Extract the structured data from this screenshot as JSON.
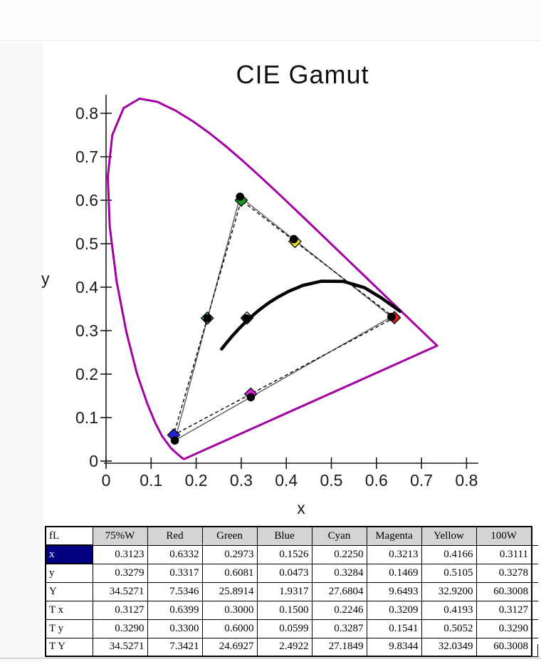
{
  "chart": {
    "title": "CIE Gamut",
    "xlabel": "x",
    "ylabel": "y",
    "x_tick_labels": [
      "0",
      "0.1",
      "0.2",
      "0.3",
      "0.4",
      "0.5",
      "0.6",
      "0.7",
      "0.8"
    ],
    "y_tick_labels": [
      "0",
      "0.1",
      "0.2",
      "0.3",
      "0.4",
      "0.5",
      "0.6",
      "0.7",
      "0.8"
    ]
  },
  "chart_data": {
    "type": "scatter",
    "title": "CIE Gamut",
    "xlabel": "x",
    "ylabel": "y",
    "xlim": [
      0,
      0.84
    ],
    "ylim": [
      0,
      0.85
    ],
    "grid": false,
    "colors": {
      "spectral_locus": "#A300A3",
      "planckian_locus": "#000000",
      "measured_triangle": "#5a5a5a",
      "target_triangle": "#000000",
      "marker_outline": "#000000",
      "measured_dot": "#000000"
    },
    "series": [
      {
        "name": "spectral_locus",
        "style": "solid-closed",
        "points": [
          [
            0.1741,
            0.005
          ],
          [
            0.1733,
            0.0048
          ],
          [
            0.1726,
            0.0048
          ],
          [
            0.1714,
            0.0051
          ],
          [
            0.1689,
            0.0069
          ],
          [
            0.1644,
            0.0109
          ],
          [
            0.1566,
            0.0177
          ],
          [
            0.144,
            0.0297
          ],
          [
            0.1241,
            0.0578
          ],
          [
            0.1096,
            0.0868
          ],
          [
            0.0913,
            0.1327
          ],
          [
            0.0687,
            0.2007
          ],
          [
            0.0454,
            0.295
          ],
          [
            0.0235,
            0.4127
          ],
          [
            0.0082,
            0.5384
          ],
          [
            0.0039,
            0.6548
          ],
          [
            0.0139,
            0.7502
          ],
          [
            0.0389,
            0.812
          ],
          [
            0.0743,
            0.8338
          ],
          [
            0.1142,
            0.8262
          ],
          [
            0.1547,
            0.8059
          ],
          [
            0.1929,
            0.7816
          ],
          [
            0.2296,
            0.7543
          ],
          [
            0.2658,
            0.7243
          ],
          [
            0.3016,
            0.6923
          ],
          [
            0.3373,
            0.6589
          ],
          [
            0.3731,
            0.6245
          ],
          [
            0.4087,
            0.5896
          ],
          [
            0.4441,
            0.5547
          ],
          [
            0.4788,
            0.5202
          ],
          [
            0.5125,
            0.4866
          ],
          [
            0.5448,
            0.4544
          ],
          [
            0.5752,
            0.4242
          ],
          [
            0.6029,
            0.3965
          ],
          [
            0.627,
            0.3725
          ],
          [
            0.6482,
            0.3514
          ],
          [
            0.6658,
            0.334
          ],
          [
            0.6801,
            0.3197
          ],
          [
            0.6915,
            0.3083
          ],
          [
            0.7006,
            0.2993
          ],
          [
            0.7079,
            0.292
          ],
          [
            0.719,
            0.2809
          ],
          [
            0.726,
            0.274
          ],
          [
            0.7347,
            0.2653
          ]
        ]
      },
      {
        "name": "planckian_locus",
        "style": "thick-solid",
        "points": [
          [
            0.2565,
            0.2577
          ],
          [
            0.2607,
            0.2634
          ],
          [
            0.2661,
            0.2704
          ],
          [
            0.2726,
            0.2784
          ],
          [
            0.2806,
            0.2883
          ],
          [
            0.2952,
            0.3048
          ],
          [
            0.3135,
            0.3237
          ],
          [
            0.3324,
            0.341
          ],
          [
            0.345,
            0.3516
          ],
          [
            0.3611,
            0.364
          ],
          [
            0.3805,
            0.3767
          ],
          [
            0.4059,
            0.3907
          ],
          [
            0.4369,
            0.4041
          ],
          [
            0.477,
            0.4137
          ],
          [
            0.5267,
            0.4133
          ],
          [
            0.5732,
            0.399
          ],
          [
            0.6101,
            0.3759
          ],
          [
            0.638,
            0.3554
          ],
          [
            0.6528,
            0.3444
          ]
        ]
      },
      {
        "name": "measured_gamut_triangle",
        "style": "solid",
        "points": [
          [
            0.6332,
            0.3317
          ],
          [
            0.2973,
            0.6081
          ],
          [
            0.1526,
            0.0473
          ]
        ]
      },
      {
        "name": "target_gamut_triangle",
        "style": "dashed",
        "points": [
          [
            0.6399,
            0.33
          ],
          [
            0.3,
            0.6
          ],
          [
            0.15,
            0.0599
          ]
        ]
      },
      {
        "name": "target_markers",
        "marker": "diamond",
        "points": [
          {
            "label": "white",
            "x": 0.3127,
            "y": 0.329,
            "color": "#ffffff"
          },
          {
            "label": "cyan",
            "x": 0.2246,
            "y": 0.3287,
            "color": "#12dede"
          },
          {
            "label": "magenta",
            "x": 0.3209,
            "y": 0.1541,
            "color": "#ea1cea"
          },
          {
            "label": "yellow",
            "x": 0.4193,
            "y": 0.5052,
            "color": "#f5ee0f"
          },
          {
            "label": "red",
            "x": 0.6399,
            "y": 0.33,
            "color": "#e51919"
          },
          {
            "label": "green",
            "x": 0.3,
            "y": 0.6,
            "color": "#0b9e1e"
          },
          {
            "label": "blue",
            "x": 0.15,
            "y": 0.0599,
            "color": "#2222d8"
          }
        ]
      },
      {
        "name": "measured_points",
        "marker": "dot",
        "points": [
          {
            "label": "75%W",
            "x": 0.3123,
            "y": 0.3279
          },
          {
            "label": "100W",
            "x": 0.3111,
            "y": 0.3278
          },
          {
            "label": "cyan",
            "x": 0.225,
            "y": 0.3284
          },
          {
            "label": "magenta",
            "x": 0.3213,
            "y": 0.1469
          },
          {
            "label": "yellow",
            "x": 0.4166,
            "y": 0.5105
          },
          {
            "label": "red",
            "x": 0.6332,
            "y": 0.3317
          },
          {
            "label": "green",
            "x": 0.2973,
            "y": 0.6081
          },
          {
            "label": "blue",
            "x": 0.1526,
            "y": 0.0473
          }
        ]
      }
    ]
  },
  "table": {
    "corner_label": "fL",
    "columns": [
      "75%W",
      "Red",
      "Green",
      "Blue",
      "Cyan",
      "Magenta",
      "Yellow",
      "100W"
    ],
    "rows": [
      {
        "label": "x",
        "selected": true,
        "values": [
          "0.3123",
          "0.6332",
          "0.2973",
          "0.1526",
          "0.2250",
          "0.3213",
          "0.4166",
          "0.3111"
        ]
      },
      {
        "label": "y",
        "selected": false,
        "values": [
          "0.3279",
          "0.3317",
          "0.6081",
          "0.0473",
          "0.3284",
          "0.1469",
          "0.5105",
          "0.3278"
        ]
      },
      {
        "label": "Y",
        "selected": false,
        "values": [
          "34.5271",
          "7.5346",
          "25.8914",
          "1.9317",
          "27.6804",
          "9.6493",
          "32.9200",
          "60.3008"
        ]
      },
      {
        "label": "T x",
        "selected": false,
        "values": [
          "0.3127",
          "0.6399",
          "0.3000",
          "0.1500",
          "0.2246",
          "0.3209",
          "0.4193",
          "0.3127"
        ]
      },
      {
        "label": "T y",
        "selected": false,
        "values": [
          "0.3290",
          "0.3300",
          "0.6000",
          "0.0599",
          "0.3287",
          "0.1541",
          "0.5052",
          "0.3290"
        ]
      },
      {
        "label": "T Y",
        "selected": false,
        "values": [
          "34.5271",
          "7.3421",
          "24.6927",
          "2.4922",
          "27.1849",
          "9.8344",
          "32.0349",
          "60.3008"
        ]
      }
    ]
  }
}
